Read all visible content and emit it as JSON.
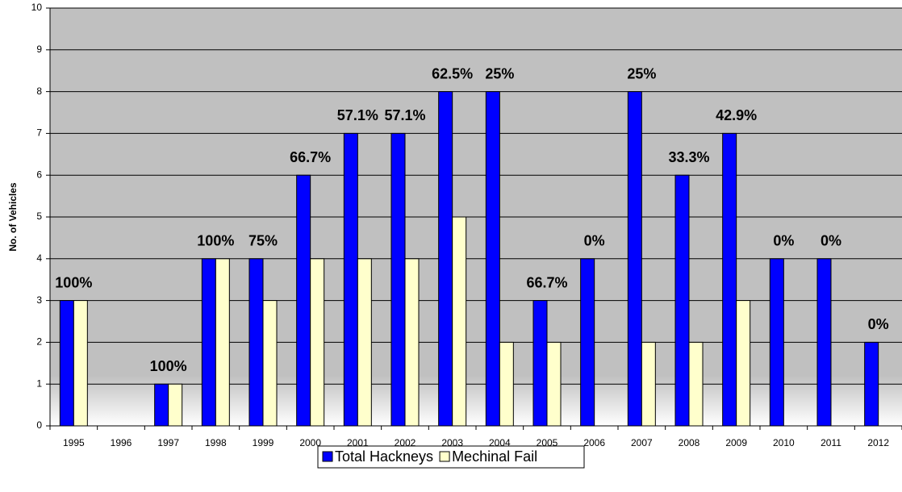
{
  "chart_data": {
    "type": "bar",
    "y_label": "No. of Vehicles",
    "categories": [
      "1995",
      "1996",
      "1997",
      "1998",
      "1999",
      "2000",
      "2001",
      "2002",
      "2003",
      "2004",
      "2005",
      "2006",
      "2007",
      "2008",
      "2009",
      "2010",
      "2011",
      "2012"
    ],
    "series": [
      {
        "name": "Total Hackneys",
        "color": "#0000ff",
        "values": [
          3,
          0,
          1,
          4,
          4,
          6,
          7,
          7,
          8,
          8,
          3,
          4,
          8,
          6,
          7,
          4,
          4,
          2
        ]
      },
      {
        "name": "Mechinal Fail",
        "color": "#ffffcc",
        "values": [
          3,
          0,
          1,
          4,
          3,
          4,
          4,
          4,
          5,
          2,
          2,
          0,
          2,
          2,
          3,
          0,
          0,
          0
        ]
      }
    ],
    "annotations": [
      "100%",
      null,
      "100%",
      "100%",
      "75%",
      "66.7%",
      "57.1%",
      "57.1%",
      "62.5%",
      "25%",
      "66.7%",
      "0%",
      "25%",
      "33.3%",
      "42.9%",
      "0%",
      "0%",
      "0%"
    ],
    "ylim": [
      0,
      10
    ],
    "yticks": [
      0,
      1,
      2,
      3,
      4,
      5,
      6,
      7,
      8,
      9,
      10
    ],
    "grid": true
  }
}
